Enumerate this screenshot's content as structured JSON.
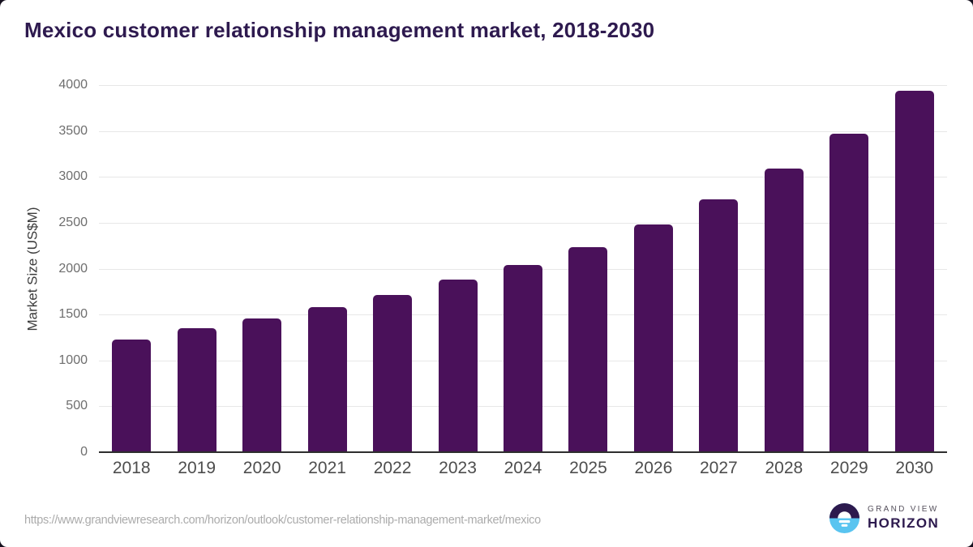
{
  "chart_data": {
    "type": "bar",
    "title": "Mexico customer relationship management market, 2018-2030",
    "categories": [
      "2018",
      "2019",
      "2020",
      "2021",
      "2022",
      "2023",
      "2024",
      "2025",
      "2026",
      "2027",
      "2028",
      "2029",
      "2030"
    ],
    "values": [
      1225,
      1350,
      1455,
      1580,
      1715,
      1880,
      2040,
      2235,
      2480,
      2755,
      3090,
      3470,
      3935
    ],
    "xlabel": "",
    "ylabel": "Market Size (US$M)",
    "ylim": [
      0,
      4000
    ],
    "ytick_step": 500,
    "grid": "horizontal",
    "legend": "none",
    "bar_color": "#4a115a"
  },
  "footer": {
    "source_url": "https://www.grandviewresearch.com/horizon/outlook/customer-relationship-management-market/mexico",
    "logo": {
      "brand_top": "GRAND VIEW",
      "brand_bottom": "HORIZON"
    }
  },
  "colors": {
    "title_text": "#2e1a4f",
    "bar": "#4a115a",
    "gridline": "#e7e7e7",
    "axis_line": "#2e2e2e",
    "y_tick_text": "#6e6e6e",
    "x_tick_text": "#4d4d4d",
    "source_text": "#ababab",
    "logo_purple": "#2d1a4e",
    "logo_blue": "#59c4f0",
    "page_background": "#15101e"
  }
}
